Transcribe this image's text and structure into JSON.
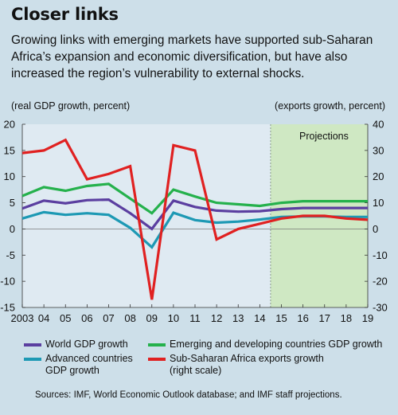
{
  "title": "Closer links",
  "subtitle": "Growing links with emerging markets have supported sub-Saharan Africa’s expansion and economic diversification, but have also increased the region’s vulnerability to external shocks.",
  "left_axis_caption": "(real GDP growth, percent)",
  "right_axis_caption": "(exports growth, percent)",
  "source": "Sources: IMF, World Economic Outlook database; and IMF staff projections.",
  "colors": {
    "world": "#5b3fa0",
    "emerging": "#25b14c",
    "advanced": "#1d99b4",
    "ssa_exports": "#e02121",
    "plot_bg": "#dfeaf2",
    "projection_bg": "#cfe8c3"
  },
  "chart_data": {
    "type": "line",
    "x": [
      "2003",
      "04",
      "05",
      "06",
      "07",
      "08",
      "09",
      "10",
      "11",
      "12",
      "13",
      "14",
      "15",
      "16",
      "17",
      "18",
      "19"
    ],
    "left_ylim": [
      -15,
      20
    ],
    "left_yticks": [
      -15,
      -10,
      -5,
      0,
      5,
      10,
      15,
      20
    ],
    "right_ylim": [
      -30,
      40
    ],
    "right_yticks": [
      -30,
      -20,
      -10,
      0,
      10,
      20,
      30,
      40
    ],
    "projection_start": "15",
    "projection_label": "Projections",
    "grid": false,
    "series": [
      {
        "name": "World GDP growth",
        "axis": "left",
        "color_key": "world",
        "values": [
          3.9,
          5.4,
          4.9,
          5.5,
          5.6,
          3.0,
          0.0,
          5.4,
          4.2,
          3.5,
          3.3,
          3.4,
          3.8,
          4.0,
          4.0,
          4.0,
          4.0
        ]
      },
      {
        "name": "Advanced countries GDP growth",
        "axis": "left",
        "color_key": "advanced",
        "values": [
          2.0,
          3.2,
          2.7,
          3.0,
          2.7,
          0.2,
          -3.5,
          3.1,
          1.7,
          1.2,
          1.4,
          1.8,
          2.3,
          2.4,
          2.4,
          2.3,
          2.3
        ]
      },
      {
        "name": "Emerging and developing countries GDP growth",
        "axis": "left",
        "color_key": "emerging",
        "values": [
          6.3,
          8.0,
          7.3,
          8.2,
          8.6,
          5.8,
          3.0,
          7.5,
          6.2,
          5.0,
          4.7,
          4.4,
          5.0,
          5.3,
          5.3,
          5.3,
          5.3
        ]
      },
      {
        "name": "Sub-Saharan Africa exports growth",
        "axis": "right",
        "color_key": "ssa_exports",
        "values": [
          29,
          30,
          34,
          19,
          21,
          24,
          -27,
          32,
          30,
          -4,
          0,
          2,
          4,
          5,
          5,
          4,
          3.5
        ]
      }
    ]
  },
  "legend": {
    "world": "World GDP growth",
    "emerging": "Emerging and developing countries GDP growth",
    "advanced_line1": "Advanced countries",
    "advanced_line2": "GDP growth",
    "ssa_line1": "Sub-Saharan Africa exports growth",
    "ssa_line2": "(right scale)"
  }
}
